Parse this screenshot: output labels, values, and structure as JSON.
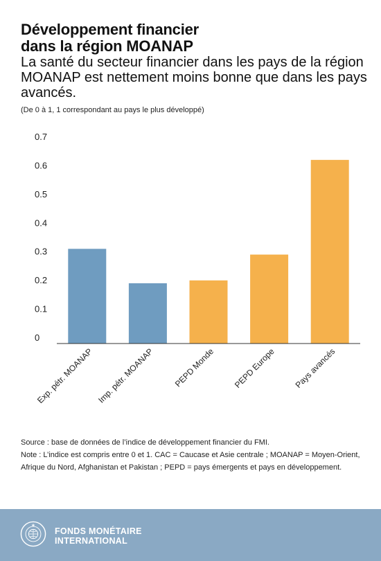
{
  "header": {
    "title_line1": "Développement financier",
    "title_line2": "dans la région MOANAP",
    "subtitle": "La santé du secteur financier dans les pays de la région MOANAP est nettement moins bonne que dans les pays avancés.",
    "scale_note": "(De 0 à 1, 1 correspondant au pays le plus développé)"
  },
  "chart_data": {
    "type": "bar",
    "categories": [
      "Exp. pétr. MOANAP",
      "Imp. pétr. MOANAP",
      "PEPD Monde",
      "PEPD Europe",
      "Pays avancés"
    ],
    "values": [
      0.33,
      0.21,
      0.22,
      0.31,
      0.64
    ],
    "colors": [
      "#6f9cc0",
      "#6f9cc0",
      "#f5b14c",
      "#f5b14c",
      "#f5b14c"
    ],
    "ylim": [
      0,
      0.7
    ],
    "yticks": [
      0,
      0.1,
      0.2,
      0.3,
      0.4,
      0.5,
      0.6,
      0.7
    ],
    "ytick_labels": [
      "0",
      "0.1",
      "0.2",
      "0.3",
      "0.4",
      "0.5",
      "0.6",
      "0.7"
    ],
    "grid": false,
    "xlabel": "",
    "ylabel": ""
  },
  "footer": {
    "source": "Source : base de données de l’indice de développement financier du FMI.",
    "note": "Note : L’indice est compris entre 0 et 1. CAC = Caucase et Asie centrale ; MOANAP = Moyen-Orient, Afrique du Nord, Afghanistan et Pakistan ; PEPD = pays émergents et pays en développement."
  },
  "branding": {
    "org_line1": "FONDS MONÉTAIRE",
    "org_line2": "INTERNATIONAL",
    "seal_text": "FONDS MONÉTAIRE INTERNATIONAL",
    "banner_color": "#8aa9c4"
  }
}
